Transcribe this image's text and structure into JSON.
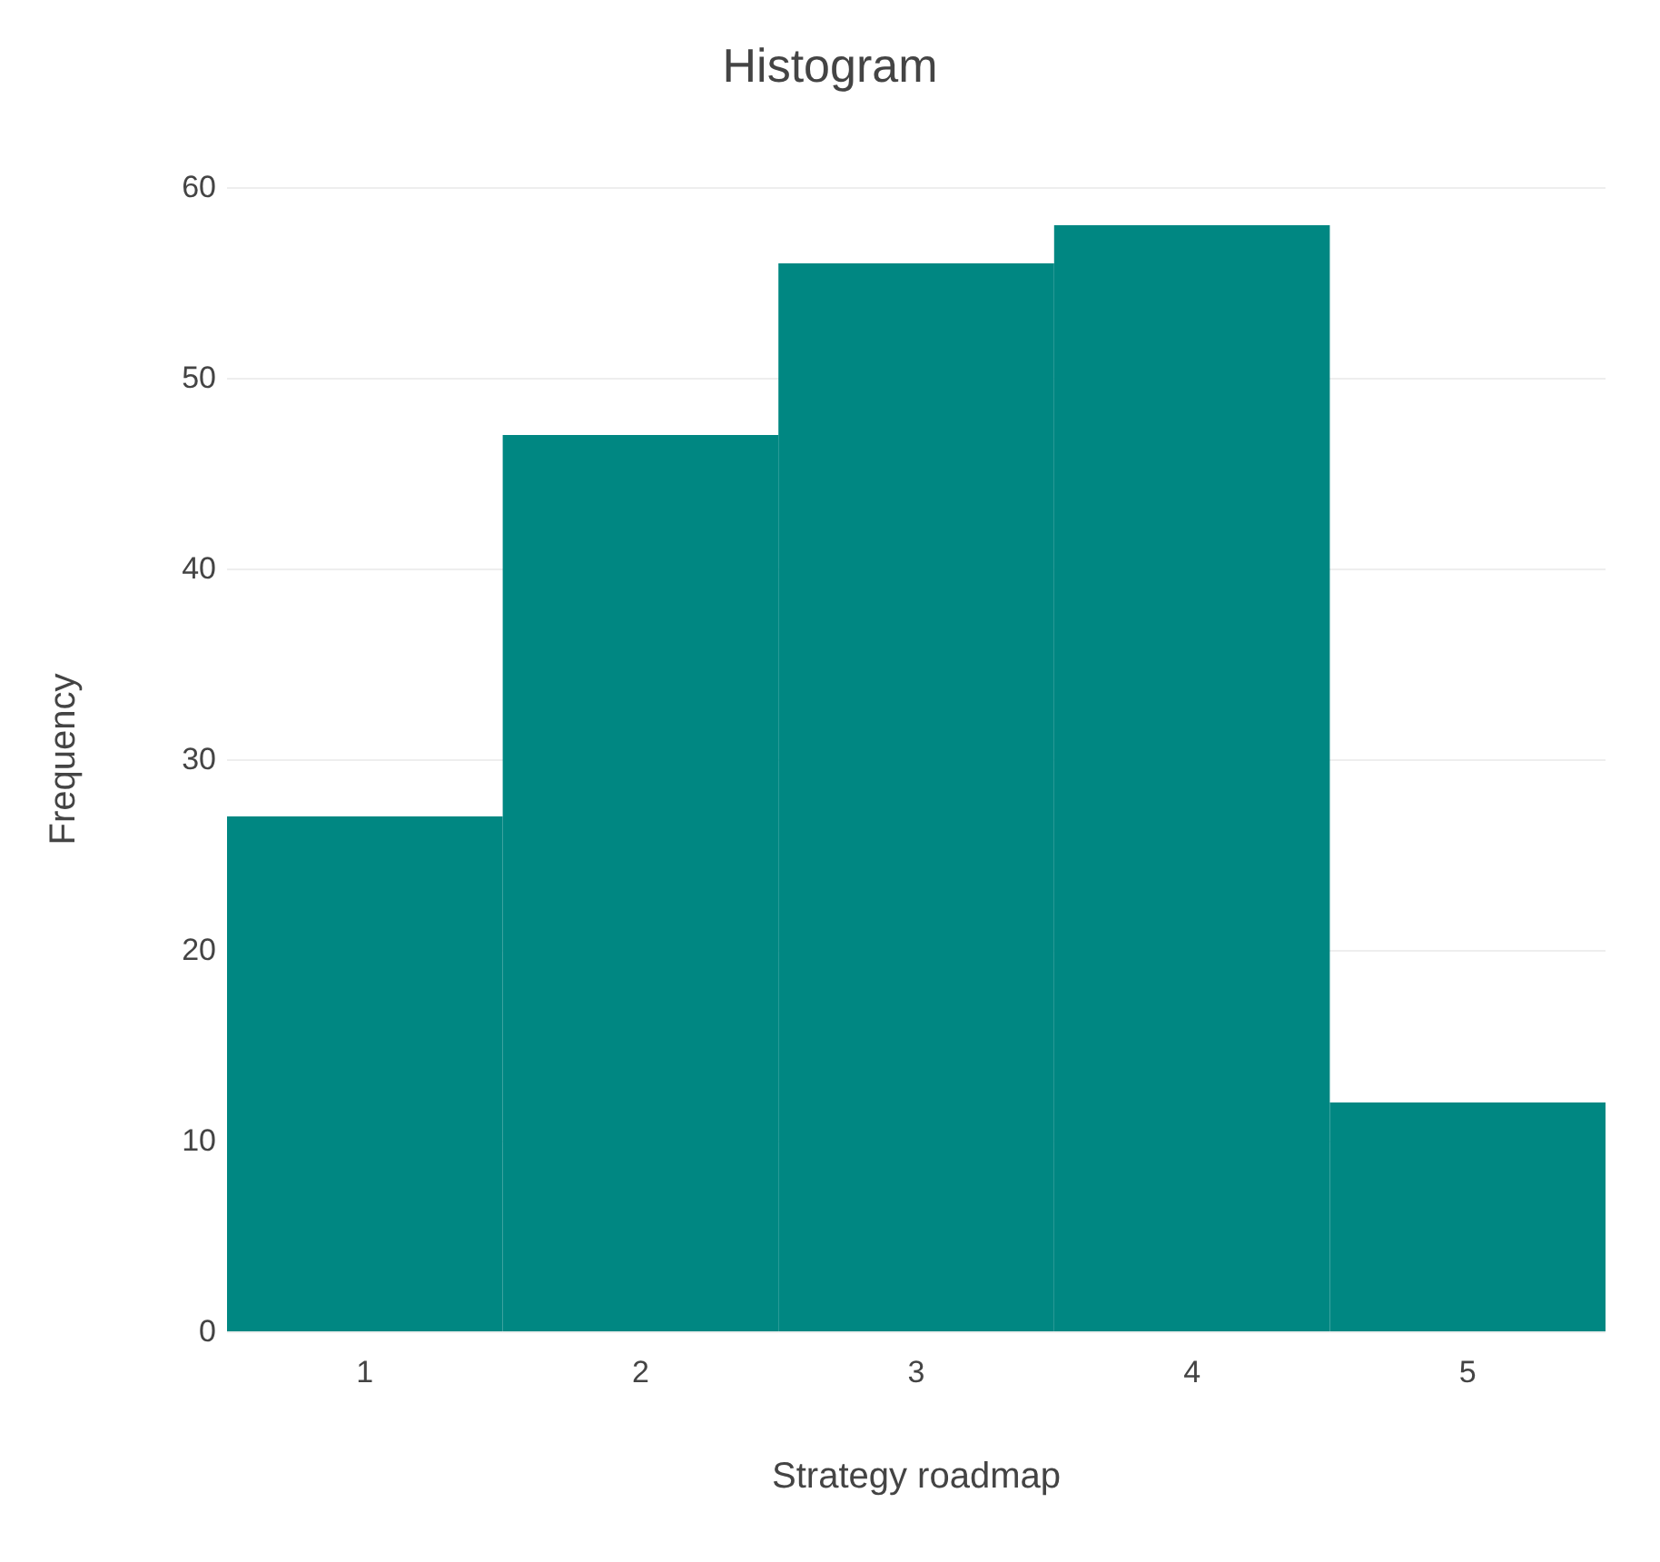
{
  "chart_data": {
    "type": "histogram",
    "title": "Histogram",
    "xlabel": "Strategy roadmap",
    "ylabel": "Frequency",
    "bins": [
      0.5,
      1.5,
      2.5,
      3.5,
      4.5,
      5.5
    ],
    "values": [
      27,
      47,
      56,
      58,
      12
    ],
    "color": "#008782",
    "xlim": [
      0.5,
      5.5
    ],
    "xticks": [
      1,
      2,
      3,
      4,
      5
    ],
    "ylim": [
      0,
      60
    ],
    "yticks": [
      0,
      10,
      20,
      30,
      40,
      50,
      60
    ],
    "grid": "y"
  }
}
